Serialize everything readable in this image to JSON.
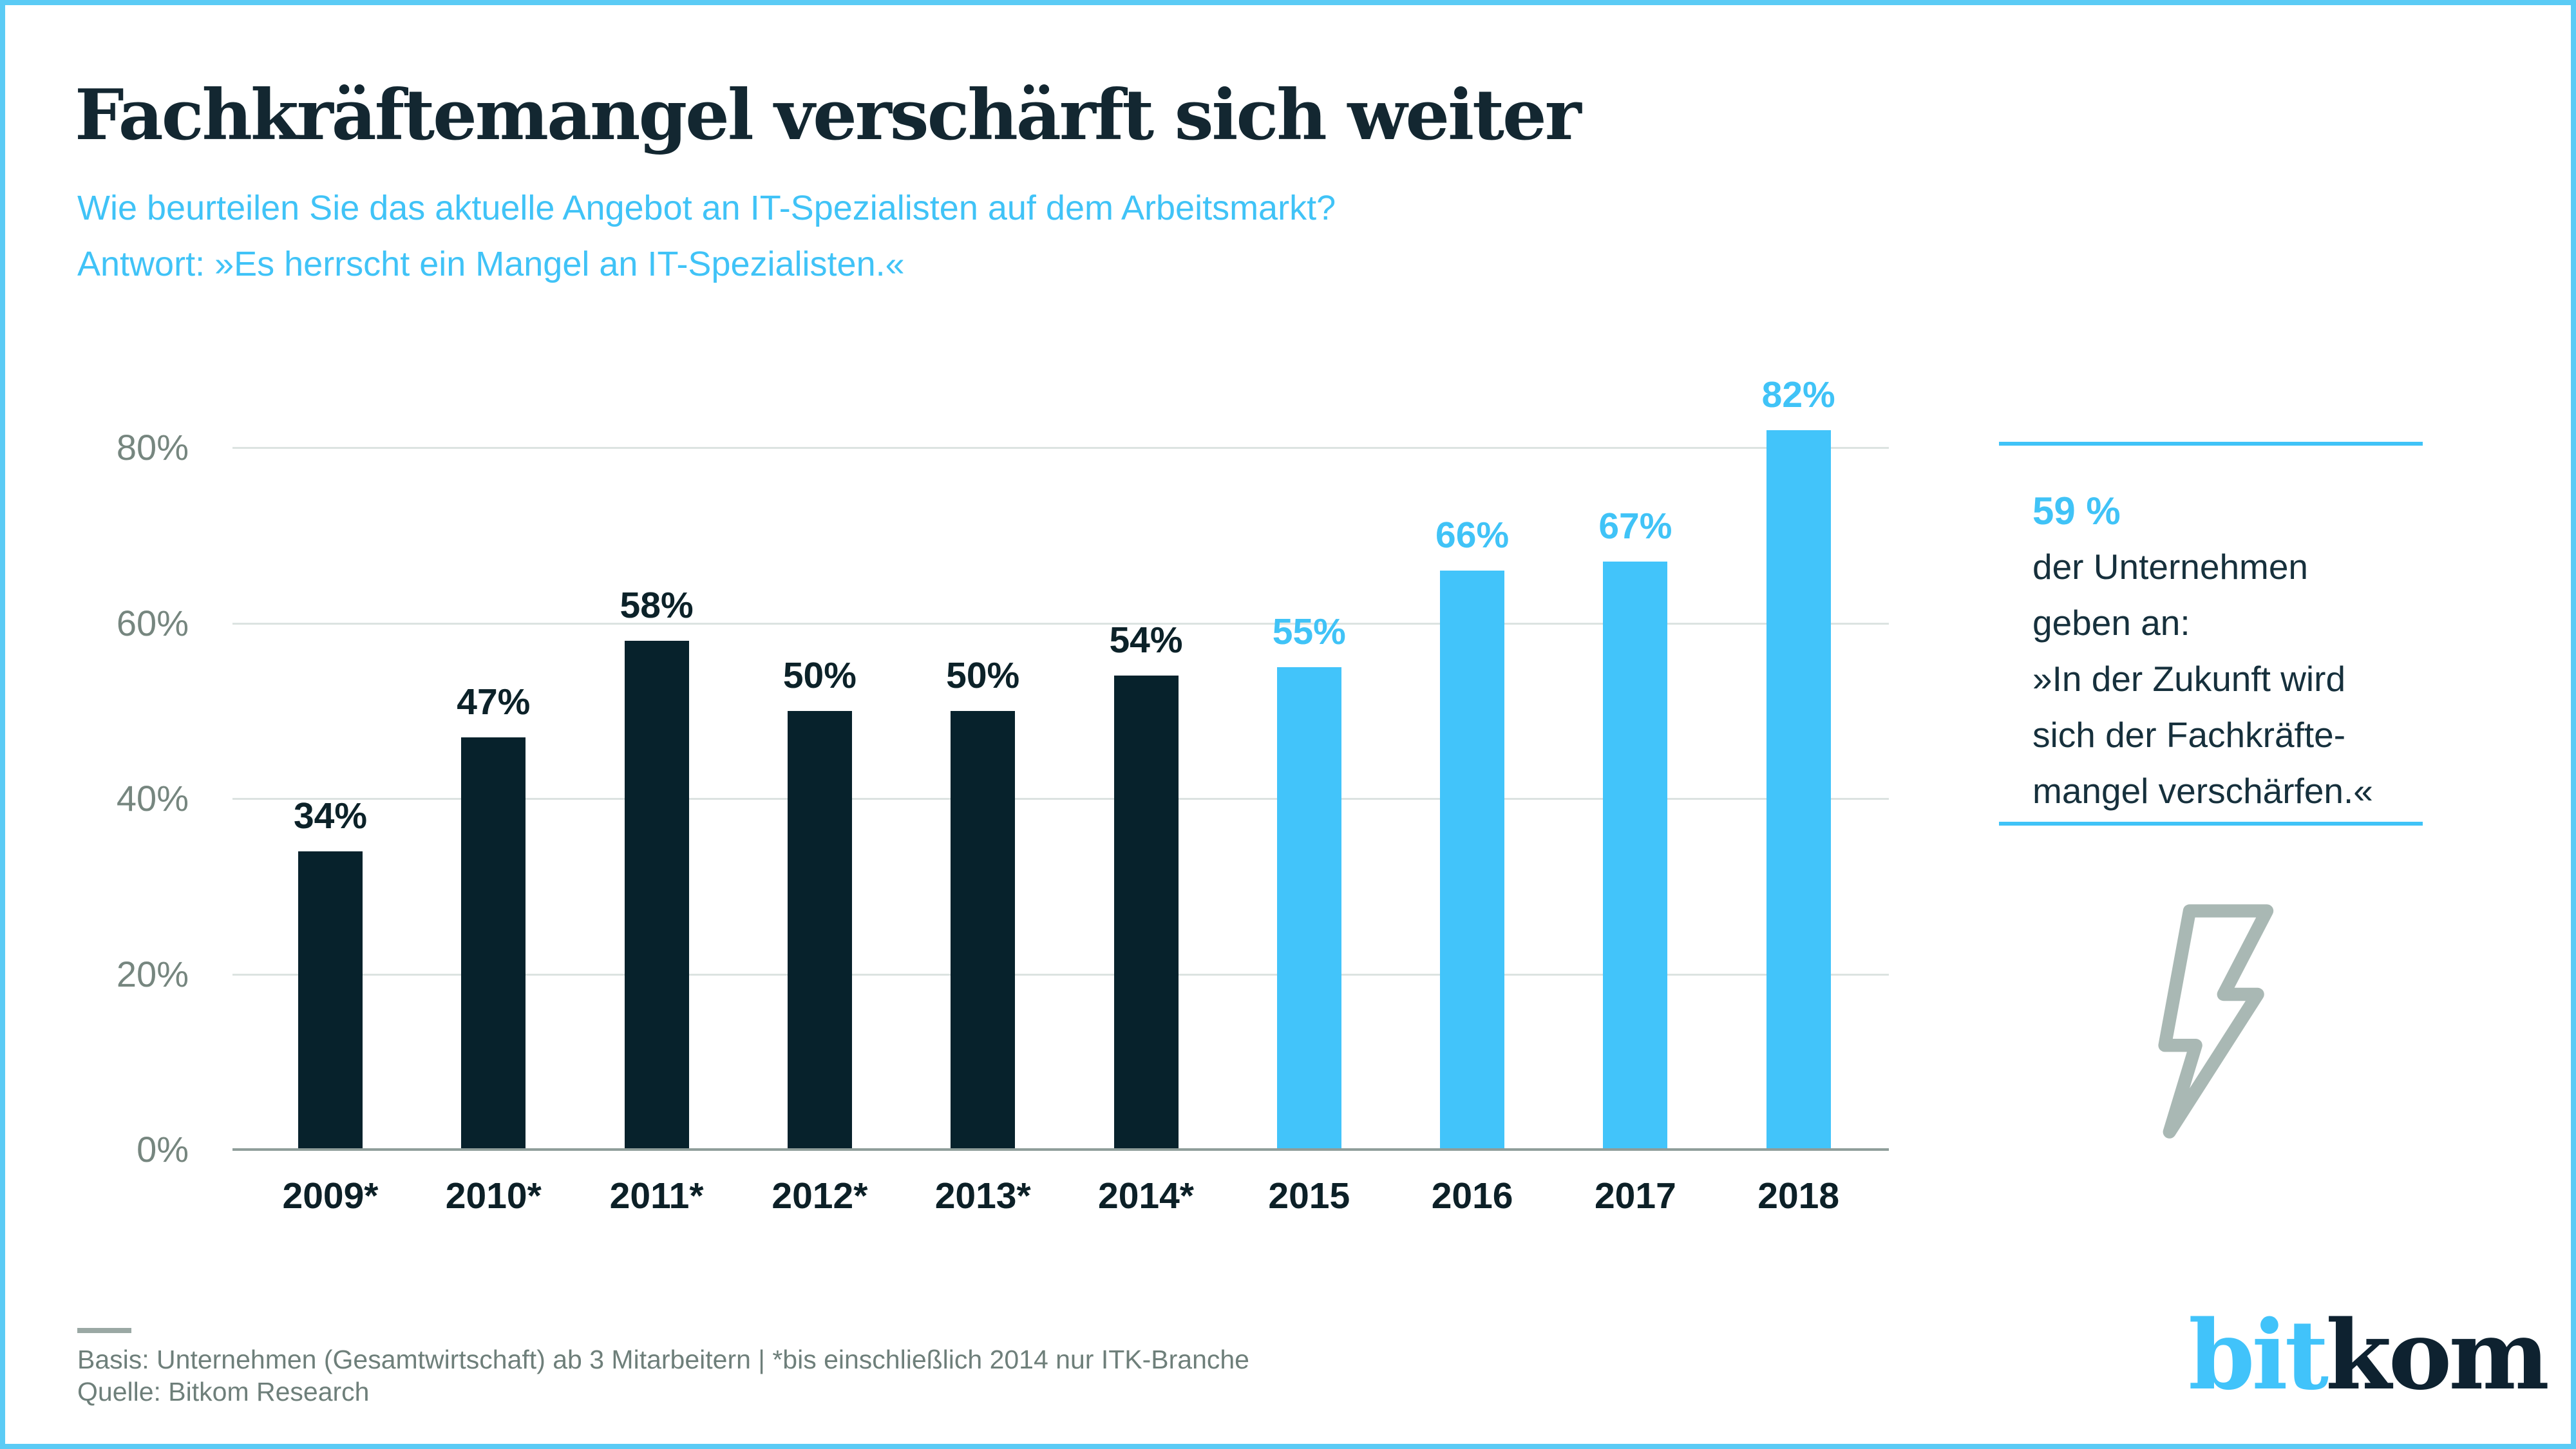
{
  "header": {
    "title": "Fachkräftemangel verschärft sich weiter",
    "subtitle_line1": "Wie beurteilen Sie das aktuelle Angebot an IT-Spezialisten auf dem Arbeitsmarkt?",
    "subtitle_line2": "Antwort: »Es herrscht ein Mangel an IT-Spezialisten.«"
  },
  "chart_data": {
    "type": "bar",
    "categories": [
      "2009*",
      "2010*",
      "2011*",
      "2012*",
      "2013*",
      "2014*",
      "2015",
      "2016",
      "2017",
      "2018"
    ],
    "values": [
      34,
      47,
      58,
      50,
      50,
      54,
      55,
      66,
      67,
      82
    ],
    "value_labels": [
      "34%",
      "47%",
      "58%",
      "50%",
      "50%",
      "54%",
      "55%",
      "66%",
      "67%",
      "82%"
    ],
    "highlight_start_index": 6,
    "ylim": [
      0,
      80
    ],
    "ytick_values": [
      80,
      60,
      40,
      20,
      0
    ],
    "ytick_labels": [
      "80%",
      "60%",
      "40%",
      "20%",
      "0%"
    ],
    "grid": true,
    "legend": "none",
    "series_note": "2009*-2014* dark bars (bis einschließlich 2014 nur ITK-Branche), 2015-2018 blue bars"
  },
  "callout": {
    "stat": "59 %",
    "lines": [
      "der Unternehmen",
      "geben an:",
      "»In der Zukunft wird",
      "sich der Fachkräfte-",
      "mangel verschärfen.«"
    ]
  },
  "footer": {
    "basis": "Basis: Unternehmen (Gesamtwirtschaft) ab 3 Mitarbeitern | *bis einschließlich 2014 nur ITK-Branche",
    "quelle": "Quelle: Bitkom Research"
  },
  "logo": {
    "bit": "bit",
    "kom": "kom"
  },
  "colors": {
    "accent": "#40c3f7",
    "bar_dark": "#07222c",
    "bar_blue": "#42c4fa",
    "label_dark": "#0c2229",
    "axis_text": "#76867f",
    "gridline": "#dce3e1",
    "axis_line": "#8f9e9a",
    "icon_gray": "#a9b8b4"
  }
}
